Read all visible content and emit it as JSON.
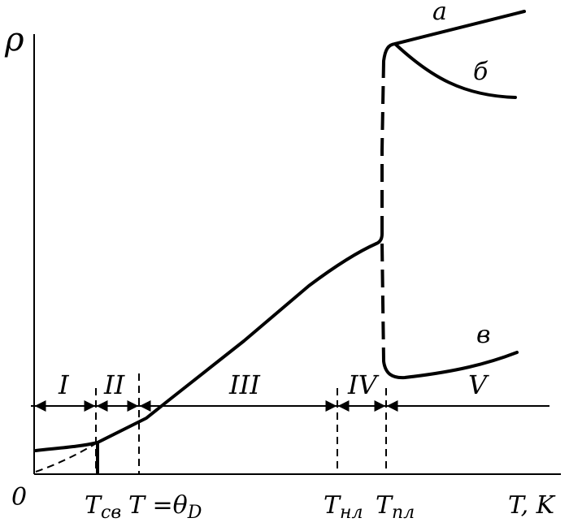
{
  "axes": {
    "y_label": "ρ",
    "origin_label": "0",
    "x_label": "T, K"
  },
  "temperature_marks": {
    "t_sv": {
      "main": "T",
      "sub": "св"
    },
    "t_theta": {
      "main": "T =θ",
      "sub": "D"
    },
    "t_nl": {
      "main": "T",
      "sub": "нл"
    },
    "t_pl": {
      "main": "T",
      "sub": "пл"
    }
  },
  "zones": [
    "I",
    "II",
    "III",
    "IV",
    "V"
  ],
  "curve_labels": {
    "a": "а",
    "b": "б",
    "v": "в"
  }
}
